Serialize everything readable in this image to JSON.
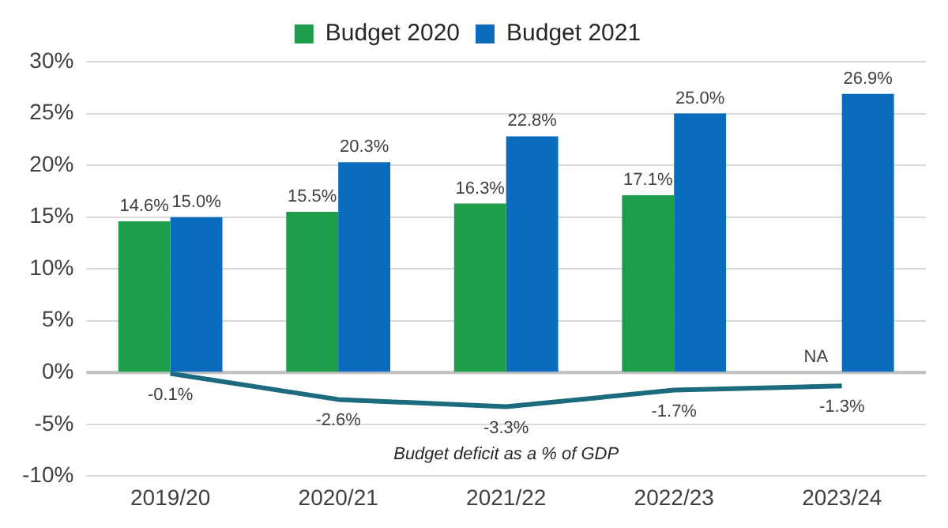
{
  "chart_data": {
    "type": "bar",
    "categories": [
      "2019/20",
      "2020/21",
      "2021/22",
      "2022/23",
      "2023/24"
    ],
    "series": [
      {
        "name": "Budget 2020",
        "color": "#1e9e4a",
        "values": [
          14.6,
          15.5,
          16.3,
          17.1,
          null
        ],
        "value_labels": [
          "14.6%",
          "15.5%",
          "16.3%",
          "17.1%",
          "NA"
        ]
      },
      {
        "name": "Budget 2021",
        "color": "#0b6cbd",
        "values": [
          15.0,
          20.3,
          22.8,
          25.0,
          26.9
        ],
        "value_labels": [
          "15.0%",
          "20.3%",
          "22.8%",
          "25.0%",
          "26.9%"
        ]
      },
      {
        "type": "line",
        "color": "#1b6a7e",
        "values": [
          -0.1,
          -2.6,
          -3.3,
          -1.7,
          -1.3
        ],
        "value_labels": [
          "-0.1%",
          "-2.6%",
          "-3.3%",
          "-1.7%",
          "-1.3%"
        ]
      }
    ],
    "ylim": [
      -10,
      30
    ],
    "yticks": [
      {
        "value": -10,
        "label": "-10%"
      },
      {
        "value": -5,
        "label": "-5%"
      },
      {
        "value": 0,
        "label": "0%"
      },
      {
        "value": 5,
        "label": "5%"
      },
      {
        "value": 10,
        "label": "10%"
      },
      {
        "value": 15,
        "label": "15%"
      },
      {
        "value": 20,
        "label": "20%"
      },
      {
        "value": 25,
        "label": "25%"
      },
      {
        "value": 30,
        "label": "30%"
      }
    ],
    "annotations": [
      "Budget deficit as a % of GDP"
    ],
    "grid": "y",
    "legend": "top",
    "marker": "none",
    "line_style": "solid"
  }
}
